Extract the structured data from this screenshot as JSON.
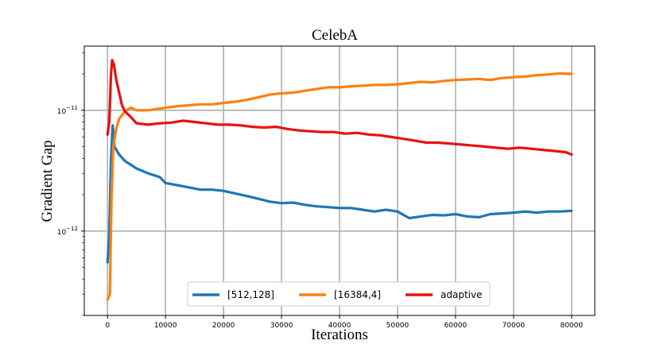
{
  "chart_data": {
    "type": "line",
    "title": "CelebA",
    "xlabel": "Iterations",
    "ylabel": "Gradient Gap",
    "yscale": "log",
    "xlim": [
      -4000,
      84000
    ],
    "ylim": [
      2e-13,
      3.4e-11
    ],
    "xticks": [
      0,
      10000,
      20000,
      30000,
      40000,
      50000,
      60000,
      70000,
      80000
    ],
    "xtick_labels": [
      "0",
      "10000",
      "20000",
      "30000",
      "40000",
      "50000",
      "60000",
      "70000",
      "80000"
    ],
    "yticks": [
      {
        "value": 1e-11,
        "base": "10",
        "exp": "−11"
      },
      {
        "value": 1e-12,
        "base": "10",
        "exp": "−12"
      }
    ],
    "grid": true,
    "legend_position": "lower-center",
    "series": [
      {
        "name": "[512,128]",
        "color": "#1f77b4",
        "points": [
          [
            0,
            5.5e-13
          ],
          [
            300,
            9e-13
          ],
          [
            600,
            4e-12
          ],
          [
            900,
            7.5e-12
          ],
          [
            1200,
            5e-12
          ],
          [
            2000,
            4.3e-12
          ],
          [
            3000,
            3.8e-12
          ],
          [
            5000,
            3.3e-12
          ],
          [
            7000,
            3e-12
          ],
          [
            9000,
            2.8e-12
          ],
          [
            10000,
            2.5e-12
          ],
          [
            12000,
            2.4e-12
          ],
          [
            14000,
            2.3e-12
          ],
          [
            16000,
            2.2e-12
          ],
          [
            18000,
            2.2e-12
          ],
          [
            20000,
            2.15e-12
          ],
          [
            22000,
            2.05e-12
          ],
          [
            24000,
            1.95e-12
          ],
          [
            26000,
            1.85e-12
          ],
          [
            28000,
            1.75e-12
          ],
          [
            30000,
            1.7e-12
          ],
          [
            32000,
            1.72e-12
          ],
          [
            34000,
            1.65e-12
          ],
          [
            36000,
            1.6e-12
          ],
          [
            38000,
            1.58e-12
          ],
          [
            40000,
            1.55e-12
          ],
          [
            42000,
            1.55e-12
          ],
          [
            44000,
            1.5e-12
          ],
          [
            46000,
            1.45e-12
          ],
          [
            48000,
            1.5e-12
          ],
          [
            50000,
            1.45e-12
          ],
          [
            52000,
            1.28e-12
          ],
          [
            54000,
            1.32e-12
          ],
          [
            56000,
            1.36e-12
          ],
          [
            58000,
            1.35e-12
          ],
          [
            60000,
            1.38e-12
          ],
          [
            62000,
            1.32e-12
          ],
          [
            64000,
            1.3e-12
          ],
          [
            66000,
            1.38e-12
          ],
          [
            68000,
            1.4e-12
          ],
          [
            70000,
            1.42e-12
          ],
          [
            72000,
            1.45e-12
          ],
          [
            74000,
            1.42e-12
          ],
          [
            76000,
            1.45e-12
          ],
          [
            78000,
            1.45e-12
          ],
          [
            80000,
            1.47e-12
          ]
        ]
      },
      {
        "name": "[16384,4]",
        "color": "#ff7f0e",
        "points": [
          [
            0,
            2.7e-13
          ],
          [
            400,
            3e-13
          ],
          [
            700,
            2e-12
          ],
          [
            1000,
            5e-12
          ],
          [
            1500,
            7e-12
          ],
          [
            2000,
            8.5e-12
          ],
          [
            3000,
            9.8e-12
          ],
          [
            4000,
            1.05e-11
          ],
          [
            5000,
            1e-11
          ],
          [
            7000,
            1e-11
          ],
          [
            10000,
            1.05e-11
          ],
          [
            12000,
            1.08e-11
          ],
          [
            14000,
            1.1e-11
          ],
          [
            16000,
            1.12e-11
          ],
          [
            18000,
            1.12e-11
          ],
          [
            20000,
            1.15e-11
          ],
          [
            22000,
            1.18e-11
          ],
          [
            24000,
            1.22e-11
          ],
          [
            26000,
            1.28e-11
          ],
          [
            28000,
            1.35e-11
          ],
          [
            30000,
            1.38e-11
          ],
          [
            32000,
            1.4e-11
          ],
          [
            34000,
            1.45e-11
          ],
          [
            36000,
            1.5e-11
          ],
          [
            38000,
            1.55e-11
          ],
          [
            40000,
            1.55e-11
          ],
          [
            42000,
            1.58e-11
          ],
          [
            44000,
            1.6e-11
          ],
          [
            46000,
            1.62e-11
          ],
          [
            48000,
            1.62e-11
          ],
          [
            50000,
            1.64e-11
          ],
          [
            52000,
            1.68e-11
          ],
          [
            54000,
            1.72e-11
          ],
          [
            56000,
            1.7e-11
          ],
          [
            58000,
            1.75e-11
          ],
          [
            60000,
            1.78e-11
          ],
          [
            62000,
            1.8e-11
          ],
          [
            64000,
            1.82e-11
          ],
          [
            66000,
            1.78e-11
          ],
          [
            68000,
            1.85e-11
          ],
          [
            70000,
            1.88e-11
          ],
          [
            72000,
            1.9e-11
          ],
          [
            74000,
            1.95e-11
          ],
          [
            76000,
            1.98e-11
          ],
          [
            78000,
            2.02e-11
          ],
          [
            80000,
            2e-11
          ]
        ]
      },
      {
        "name": "adaptive",
        "color": "#e8110f",
        "points": [
          [
            0,
            6.3e-12
          ],
          [
            300,
            8e-12
          ],
          [
            600,
            2e-11
          ],
          [
            800,
            2.6e-11
          ],
          [
            1100,
            2.4e-11
          ],
          [
            1500,
            1.8e-11
          ],
          [
            2000,
            1.4e-11
          ],
          [
            2500,
            1.1e-11
          ],
          [
            3000,
            9.8e-12
          ],
          [
            4000,
            8.8e-12
          ],
          [
            5000,
            7.8e-12
          ],
          [
            7000,
            7.6e-12
          ],
          [
            9000,
            7.8e-12
          ],
          [
            11000,
            7.9e-12
          ],
          [
            13000,
            8.2e-12
          ],
          [
            15000,
            8e-12
          ],
          [
            17000,
            7.8e-12
          ],
          [
            19000,
            7.6e-12
          ],
          [
            21000,
            7.6e-12
          ],
          [
            23000,
            7.5e-12
          ],
          [
            25000,
            7.3e-12
          ],
          [
            27000,
            7.2e-12
          ],
          [
            29000,
            7.3e-12
          ],
          [
            31000,
            7e-12
          ],
          [
            33000,
            6.8e-12
          ],
          [
            35000,
            6.7e-12
          ],
          [
            37000,
            6.6e-12
          ],
          [
            39000,
            6.6e-12
          ],
          [
            41000,
            6.4e-12
          ],
          [
            43000,
            6.5e-12
          ],
          [
            45000,
            6.3e-12
          ],
          [
            47000,
            6.2e-12
          ],
          [
            49000,
            6e-12
          ],
          [
            51000,
            5.8e-12
          ],
          [
            53000,
            5.6e-12
          ],
          [
            55000,
            5.4e-12
          ],
          [
            57000,
            5.4e-12
          ],
          [
            59000,
            5.3e-12
          ],
          [
            61000,
            5.2e-12
          ],
          [
            63000,
            5.1e-12
          ],
          [
            65000,
            5e-12
          ],
          [
            67000,
            4.9e-12
          ],
          [
            69000,
            4.8e-12
          ],
          [
            71000,
            4.9e-12
          ],
          [
            73000,
            4.8e-12
          ],
          [
            75000,
            4.7e-12
          ],
          [
            77000,
            4.6e-12
          ],
          [
            79000,
            4.5e-12
          ],
          [
            80000,
            4.3e-12
          ]
        ]
      }
    ]
  }
}
